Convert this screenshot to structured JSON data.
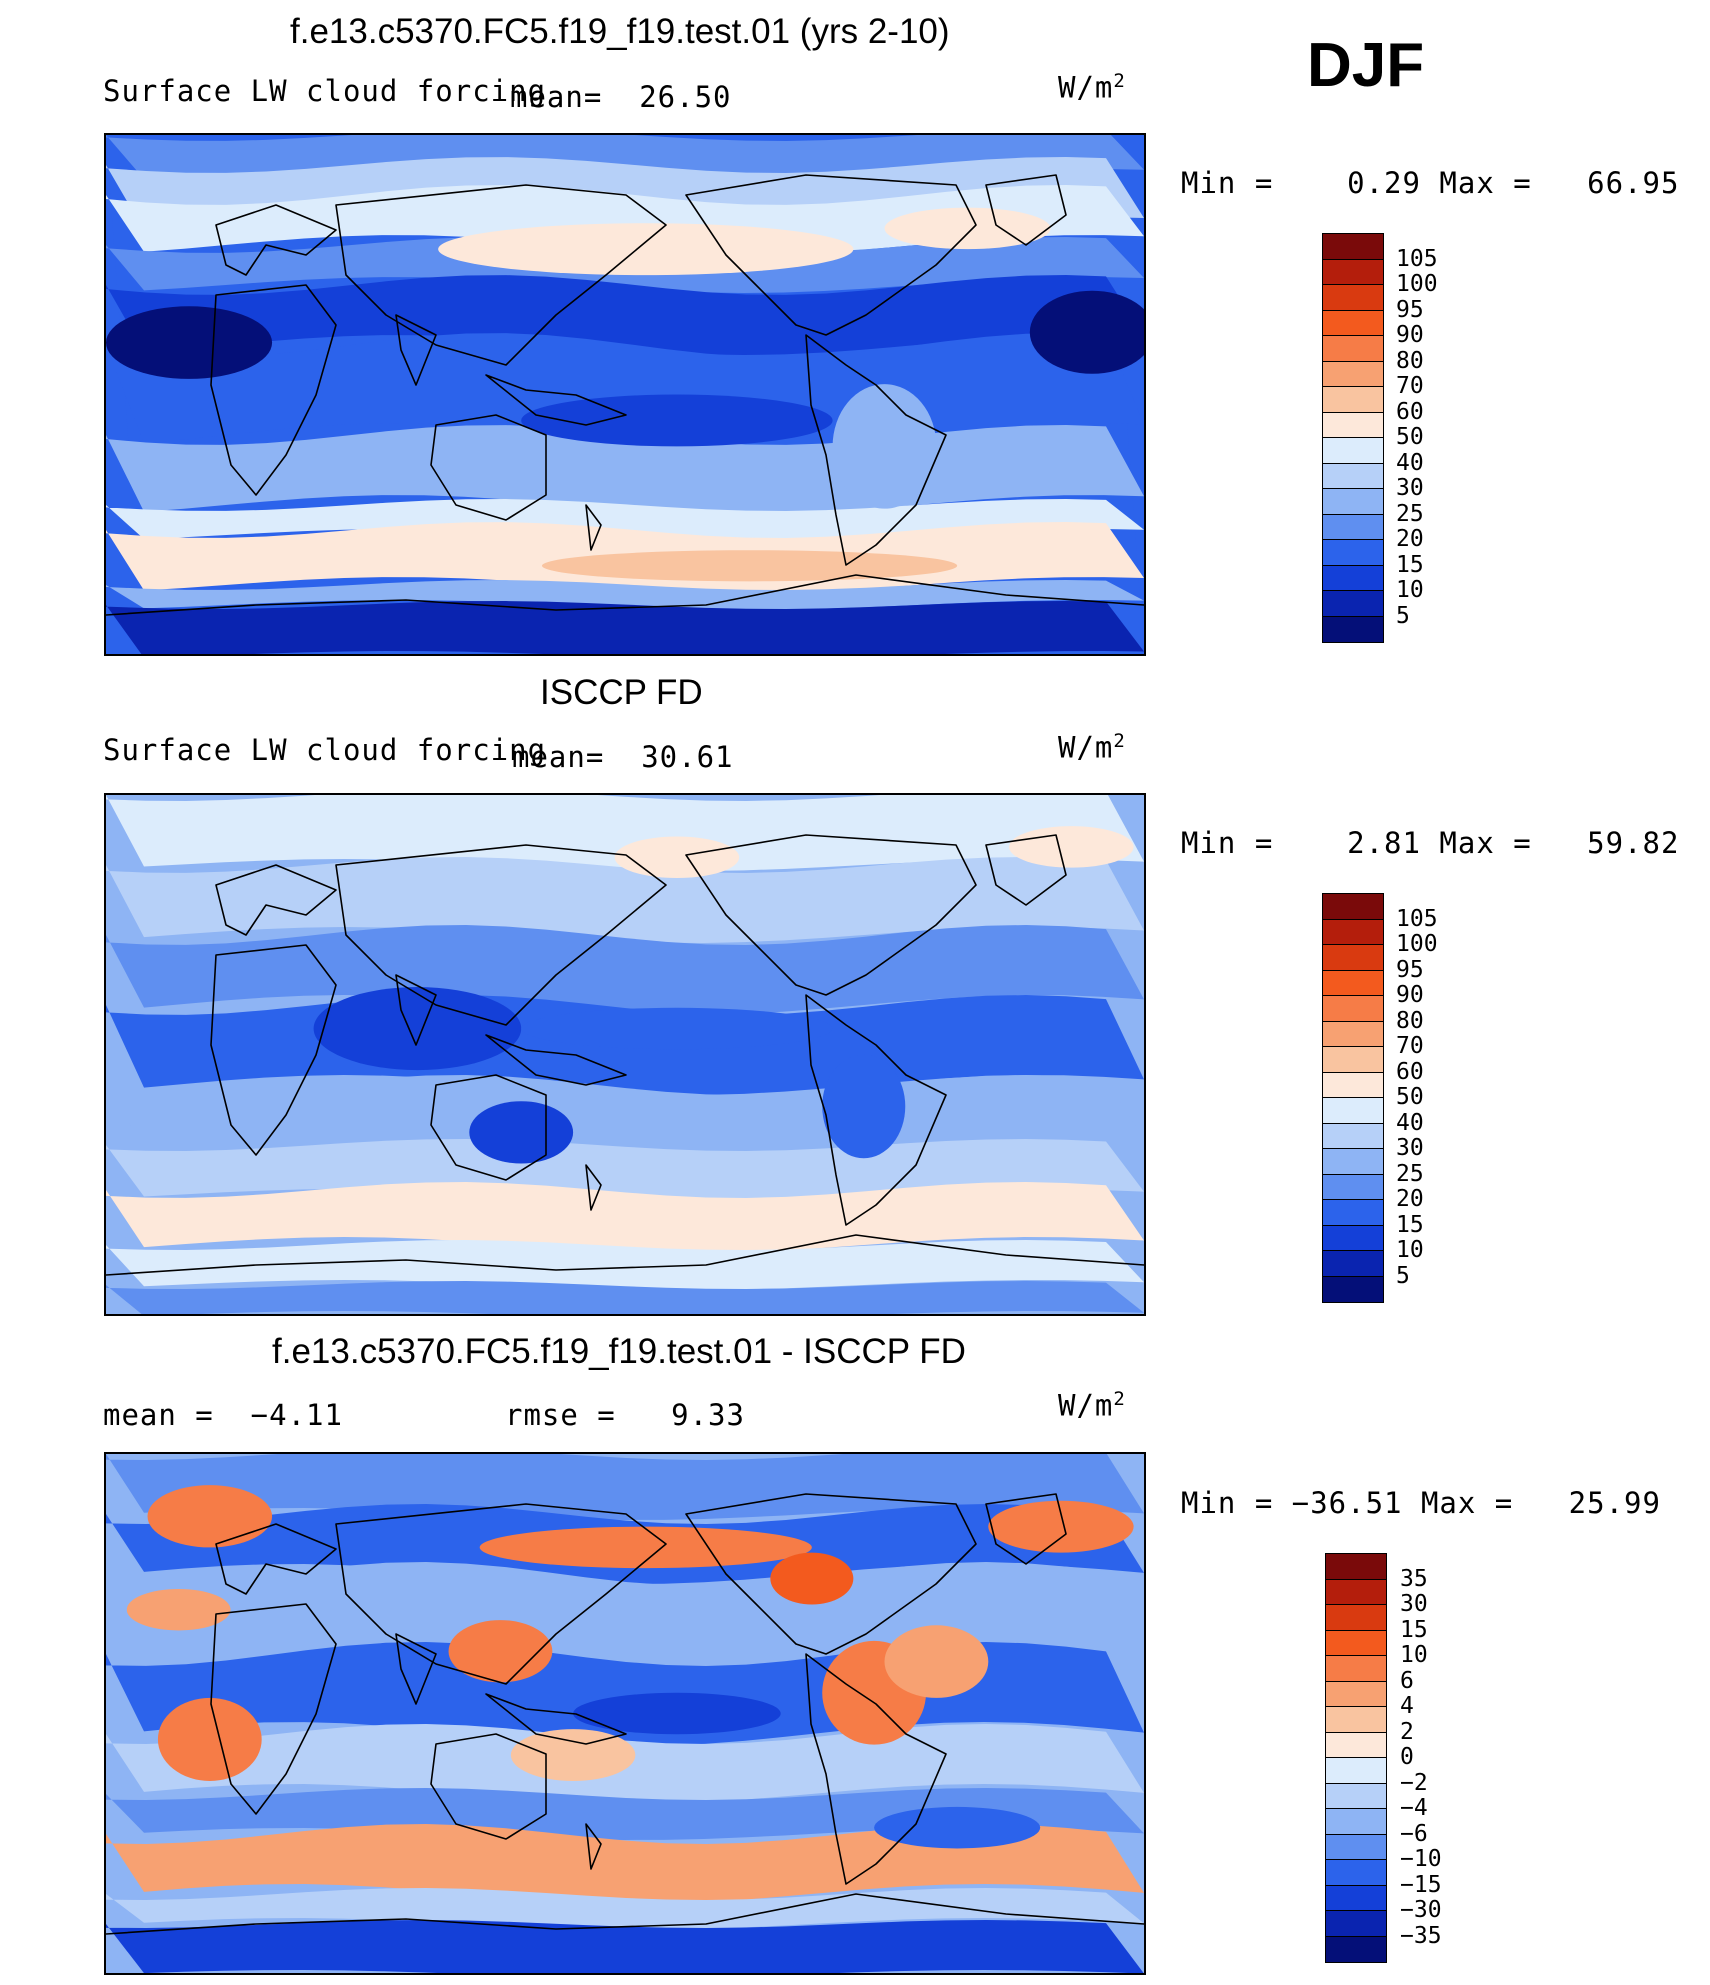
{
  "season": "DJF",
  "units_base": "W/m",
  "units_sup": "2",
  "panels": [
    {
      "title": "f.e13.c5370.FC5.f19_f19.test.01 (yrs 2-10)",
      "left_text": "Surface LW cloud forcing",
      "stat1": "mean=  26.50",
      "stat2": "",
      "minmax": "Min =    0.29 Max =   66.95"
    },
    {
      "title": "ISCCP FD",
      "left_text": "Surface LW cloud forcing",
      "stat1": "mean=  30.61",
      "stat2": "",
      "minmax": "Min =    2.81 Max =   59.82"
    },
    {
      "title": "f.e13.c5370.FC5.f19_f19.test.01 - ISCCP FD",
      "left_text": "mean =  −4.11",
      "stat1": "rmse =   9.33",
      "stat2": "",
      "minmax": "Min = −36.51 Max =   25.99"
    }
  ],
  "chart_data": [
    {
      "type": "heatmap",
      "title": "f.e13.c5370.FC5.f19_f19.test.01 (yrs 2-10)",
      "subtitle": "Surface LW cloud forcing",
      "units": "W/m2",
      "mean": 26.5,
      "min": 0.29,
      "max": 66.95,
      "colorbar_levels": [
        "105",
        "100",
        "95",
        "90",
        "80",
        "70",
        "60",
        "50",
        "40",
        "30",
        "25",
        "20",
        "15",
        "10",
        "5"
      ],
      "colorbar_colors": [
        "#7a0a0a",
        "#b41e0c",
        "#d93a10",
        "#f35a1e",
        "#f67c47",
        "#f7a172",
        "#f9c4a0",
        "#fde8da",
        "#dcecfc",
        "#b6d0f8",
        "#8eb4f4",
        "#5f8ff0",
        "#2c63eb",
        "#1440d8",
        "#0a24b0",
        "#040f78"
      ]
    },
    {
      "type": "heatmap",
      "title": "ISCCP FD",
      "subtitle": "Surface LW cloud forcing",
      "units": "W/m2",
      "mean": 30.61,
      "min": 2.81,
      "max": 59.82,
      "colorbar_levels": [
        "105",
        "100",
        "95",
        "90",
        "80",
        "70",
        "60",
        "50",
        "40",
        "30",
        "25",
        "20",
        "15",
        "10",
        "5"
      ],
      "colorbar_colors": [
        "#7a0a0a",
        "#b41e0c",
        "#d93a10",
        "#f35a1e",
        "#f67c47",
        "#f7a172",
        "#f9c4a0",
        "#fde8da",
        "#dcecfc",
        "#b6d0f8",
        "#8eb4f4",
        "#5f8ff0",
        "#2c63eb",
        "#1440d8",
        "#0a24b0",
        "#040f78"
      ]
    },
    {
      "type": "heatmap",
      "title": "f.e13.c5370.FC5.f19_f19.test.01 - ISCCP FD",
      "units": "W/m2",
      "mean": -4.11,
      "rmse": 9.33,
      "min": -36.51,
      "max": 25.99,
      "colorbar_levels": [
        "35",
        "30",
        "15",
        "10",
        "6",
        "4",
        "2",
        "0",
        "−2",
        "−4",
        "−6",
        "−10",
        "−15",
        "−30",
        "−35"
      ],
      "colorbar_colors": [
        "#7a0a0a",
        "#b41e0c",
        "#d93a10",
        "#f35a1e",
        "#f67c47",
        "#f7a172",
        "#f9c4a0",
        "#fde8da",
        "#dcecfc",
        "#b6d0f8",
        "#8eb4f4",
        "#5f8ff0",
        "#2c63eb",
        "#1440d8",
        "#0a24b0",
        "#040f78"
      ]
    }
  ]
}
